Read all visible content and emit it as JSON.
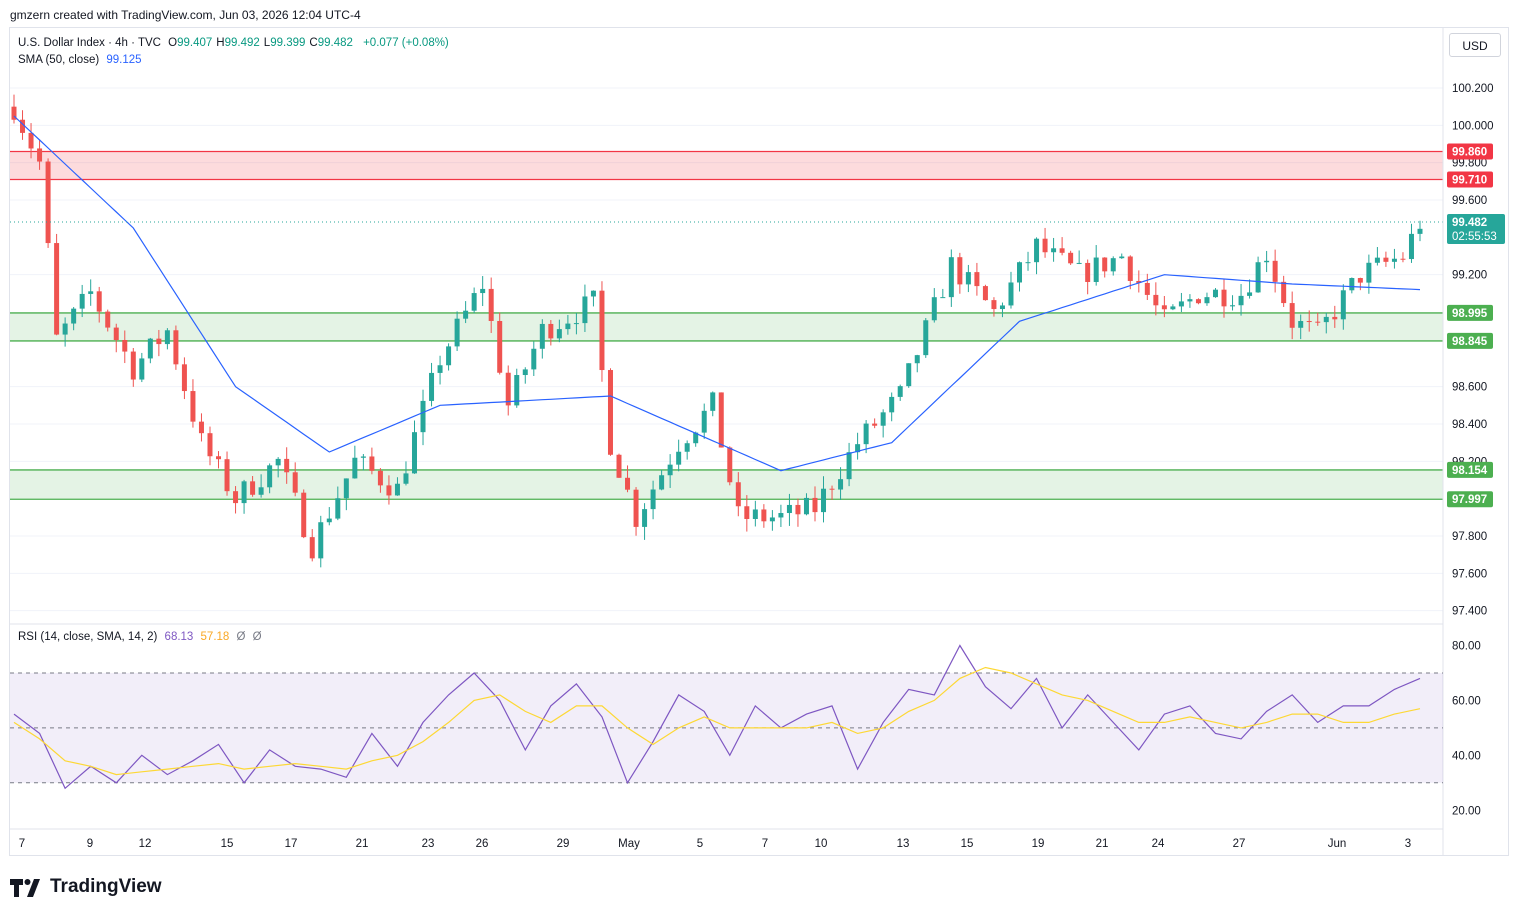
{
  "header": {
    "credit": "gmzern created with TradingView.com, Jun 03, 2026 12:04 UTC-4"
  },
  "currency_button": "USD",
  "brand": {
    "name": "TradingView"
  },
  "legend": {
    "symbol": "U.S. Dollar Index · 4h · TVC",
    "ohlc": [
      {
        "key": "O",
        "value": "99.407"
      },
      {
        "key": "H",
        "value": "99.492"
      },
      {
        "key": "L",
        "value": "99.399"
      },
      {
        "key": "C",
        "value": "99.482"
      }
    ],
    "change": "+0.077 (+0.08%)",
    "sma_label": "SMA (50, close)",
    "sma_value": "99.125",
    "rsi_label": "RSI (14, close, SMA, 14, 2)",
    "rsi_value": "68.13",
    "rsi_sma_value": "57.18",
    "rsi_extra": [
      "Ø",
      "Ø"
    ]
  },
  "colors": {
    "up": "#26a69a",
    "down": "#ef5350",
    "sma": "#2962ff",
    "resistance": "#f23645",
    "support": "#4caf50",
    "rsi": "#7e57c2",
    "rsi_sma": "#fdd835",
    "price_tag": "#26a69a"
  },
  "chart_data": [
    {
      "type": "candlestick",
      "title": "U.S. Dollar Index · 4h · TVC",
      "ylim": [
        97.35,
        100.35
      ],
      "y_ticks": [
        "100.200",
        "100.000",
        "99.800",
        "99.600",
        "99.200",
        "98.600",
        "98.400",
        "98.200",
        "97.800",
        "97.600",
        "97.400"
      ],
      "x_ticks": [
        "7",
        "9",
        "12",
        "15",
        "17",
        "21",
        "23",
        "26",
        "29",
        "May",
        "5",
        "7",
        "10",
        "13",
        "15",
        "19",
        "21",
        "24",
        "27",
        "Jun",
        "3"
      ],
      "zones": [
        {
          "kind": "resistance",
          "top": 99.86,
          "bottom": 99.71,
          "labels": [
            "99.860",
            "99.710"
          ]
        },
        {
          "kind": "support",
          "top": 98.995,
          "bottom": 98.845,
          "labels": [
            "98.995",
            "98.845"
          ]
        },
        {
          "kind": "support",
          "top": 98.154,
          "bottom": 97.997,
          "labels": [
            "98.154",
            "97.997"
          ]
        }
      ],
      "last_price": {
        "value": 99.482,
        "label": "99.482",
        "countdown": "02:55:53"
      },
      "sma_anchor": [
        [
          0,
          100.05
        ],
        [
          14,
          99.45
        ],
        [
          26,
          98.6
        ],
        [
          37,
          98.25
        ],
        [
          50,
          98.5
        ],
        [
          70,
          98.55
        ],
        [
          90,
          98.15
        ],
        [
          103,
          98.3
        ],
        [
          118,
          98.95
        ],
        [
          135,
          99.2
        ],
        [
          150,
          99.15
        ],
        [
          165,
          99.12
        ]
      ],
      "series": [
        {
          "name": "Price",
          "anchors": [
            [
              0,
              100.1
            ],
            [
              3,
              99.8
            ],
            [
              5,
              98.85
            ],
            [
              9,
              99.1
            ],
            [
              14,
              98.7
            ],
            [
              18,
              98.9
            ],
            [
              22,
              98.3
            ],
            [
              26,
              98.0
            ],
            [
              31,
              98.2
            ],
            [
              35,
              97.75
            ],
            [
              40,
              98.2
            ],
            [
              45,
              98.05
            ],
            [
              50,
              98.75
            ],
            [
              55,
              99.15
            ],
            [
              58,
              98.5
            ],
            [
              62,
              98.9
            ],
            [
              68,
              99.05
            ],
            [
              70,
              98.3
            ],
            [
              73,
              97.9
            ],
            [
              78,
              98.3
            ],
            [
              82,
              98.5
            ],
            [
              85,
              97.9
            ],
            [
              90,
              97.9
            ],
            [
              94,
              97.95
            ],
            [
              99,
              98.3
            ],
            [
              104,
              98.55
            ],
            [
              110,
              99.25
            ],
            [
              115,
              99.0
            ],
            [
              120,
              99.35
            ],
            [
              125,
              99.2
            ],
            [
              130,
              99.3
            ],
            [
              135,
              98.95
            ],
            [
              139,
              99.1
            ],
            [
              144,
              99.1
            ],
            [
              147,
              99.32
            ],
            [
              150,
              98.95
            ],
            [
              153,
              98.88
            ],
            [
              158,
              99.2
            ],
            [
              163,
              99.3
            ],
            [
              165,
              99.48
            ]
          ]
        }
      ]
    },
    {
      "type": "line",
      "title": "RSI (14, close, SMA, 14, 2)",
      "ylim": [
        15,
        82
      ],
      "y_ticks": [
        "80.00",
        "60.00",
        "40.00",
        "20.00"
      ],
      "levels": [
        70,
        50,
        30
      ],
      "series": [
        {
          "name": "RSI",
          "values": [
            55,
            48,
            28,
            36,
            30,
            40,
            33,
            38,
            44,
            30,
            42,
            36,
            35,
            32,
            48,
            36,
            52,
            62,
            70,
            60,
            42,
            58,
            66,
            54,
            30,
            45,
            62,
            56,
            40,
            58,
            50,
            55,
            58,
            35,
            52,
            64,
            62,
            80,
            65,
            57,
            68,
            50,
            62,
            52,
            42,
            55,
            58,
            48,
            46,
            56,
            62,
            52,
            58,
            58,
            64,
            68
          ]
        },
        {
          "name": "SMA",
          "values": [
            52,
            46,
            38,
            36,
            33,
            34,
            35,
            36,
            37,
            35,
            36,
            37,
            36,
            35,
            38,
            40,
            45,
            52,
            60,
            62,
            56,
            52,
            58,
            58,
            50,
            44,
            50,
            54,
            50,
            50,
            50,
            50,
            52,
            48,
            50,
            56,
            60,
            68,
            72,
            70,
            66,
            62,
            60,
            56,
            52,
            52,
            54,
            52,
            50,
            52,
            55,
            55,
            52,
            52,
            55,
            57
          ]
        }
      ]
    }
  ]
}
